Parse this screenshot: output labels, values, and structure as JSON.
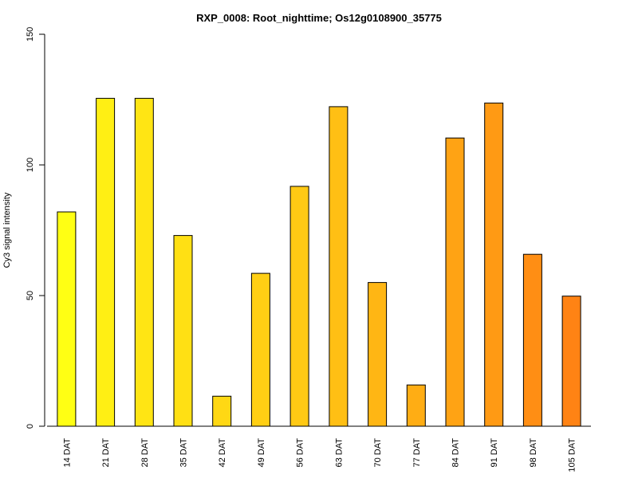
{
  "chart_data": {
    "type": "bar",
    "title": "RXP_0008: Root_nighttime; Os12g0108900_35775",
    "xlabel": "",
    "ylabel": "Cy3 signal intensity",
    "ylim": [
      0,
      150
    ],
    "yticks": [
      0,
      50,
      100,
      150
    ],
    "grid": false,
    "categories": [
      "14 DAT",
      "21 DAT",
      "28 DAT",
      "35 DAT",
      "42 DAT",
      "49 DAT",
      "56 DAT",
      "63 DAT",
      "70 DAT",
      "77 DAT",
      "84 DAT",
      "91 DAT",
      "98 DAT",
      "105 DAT"
    ],
    "values": [
      82,
      125.5,
      125.5,
      73,
      11.5,
      58.5,
      91.8,
      122.3,
      55,
      15.8,
      110.3,
      123.7,
      65.8,
      49.8
    ],
    "colors": [
      "#FFFF14",
      "#FFEF14",
      "#FFE514",
      "#FFE014",
      "#FFD814",
      "#FFCF14",
      "#FFC914",
      "#FFBF14",
      "#FFB614",
      "#FFAD14",
      "#FFA314",
      "#FF9A14",
      "#FF8E14",
      "#FF8314"
    ]
  }
}
